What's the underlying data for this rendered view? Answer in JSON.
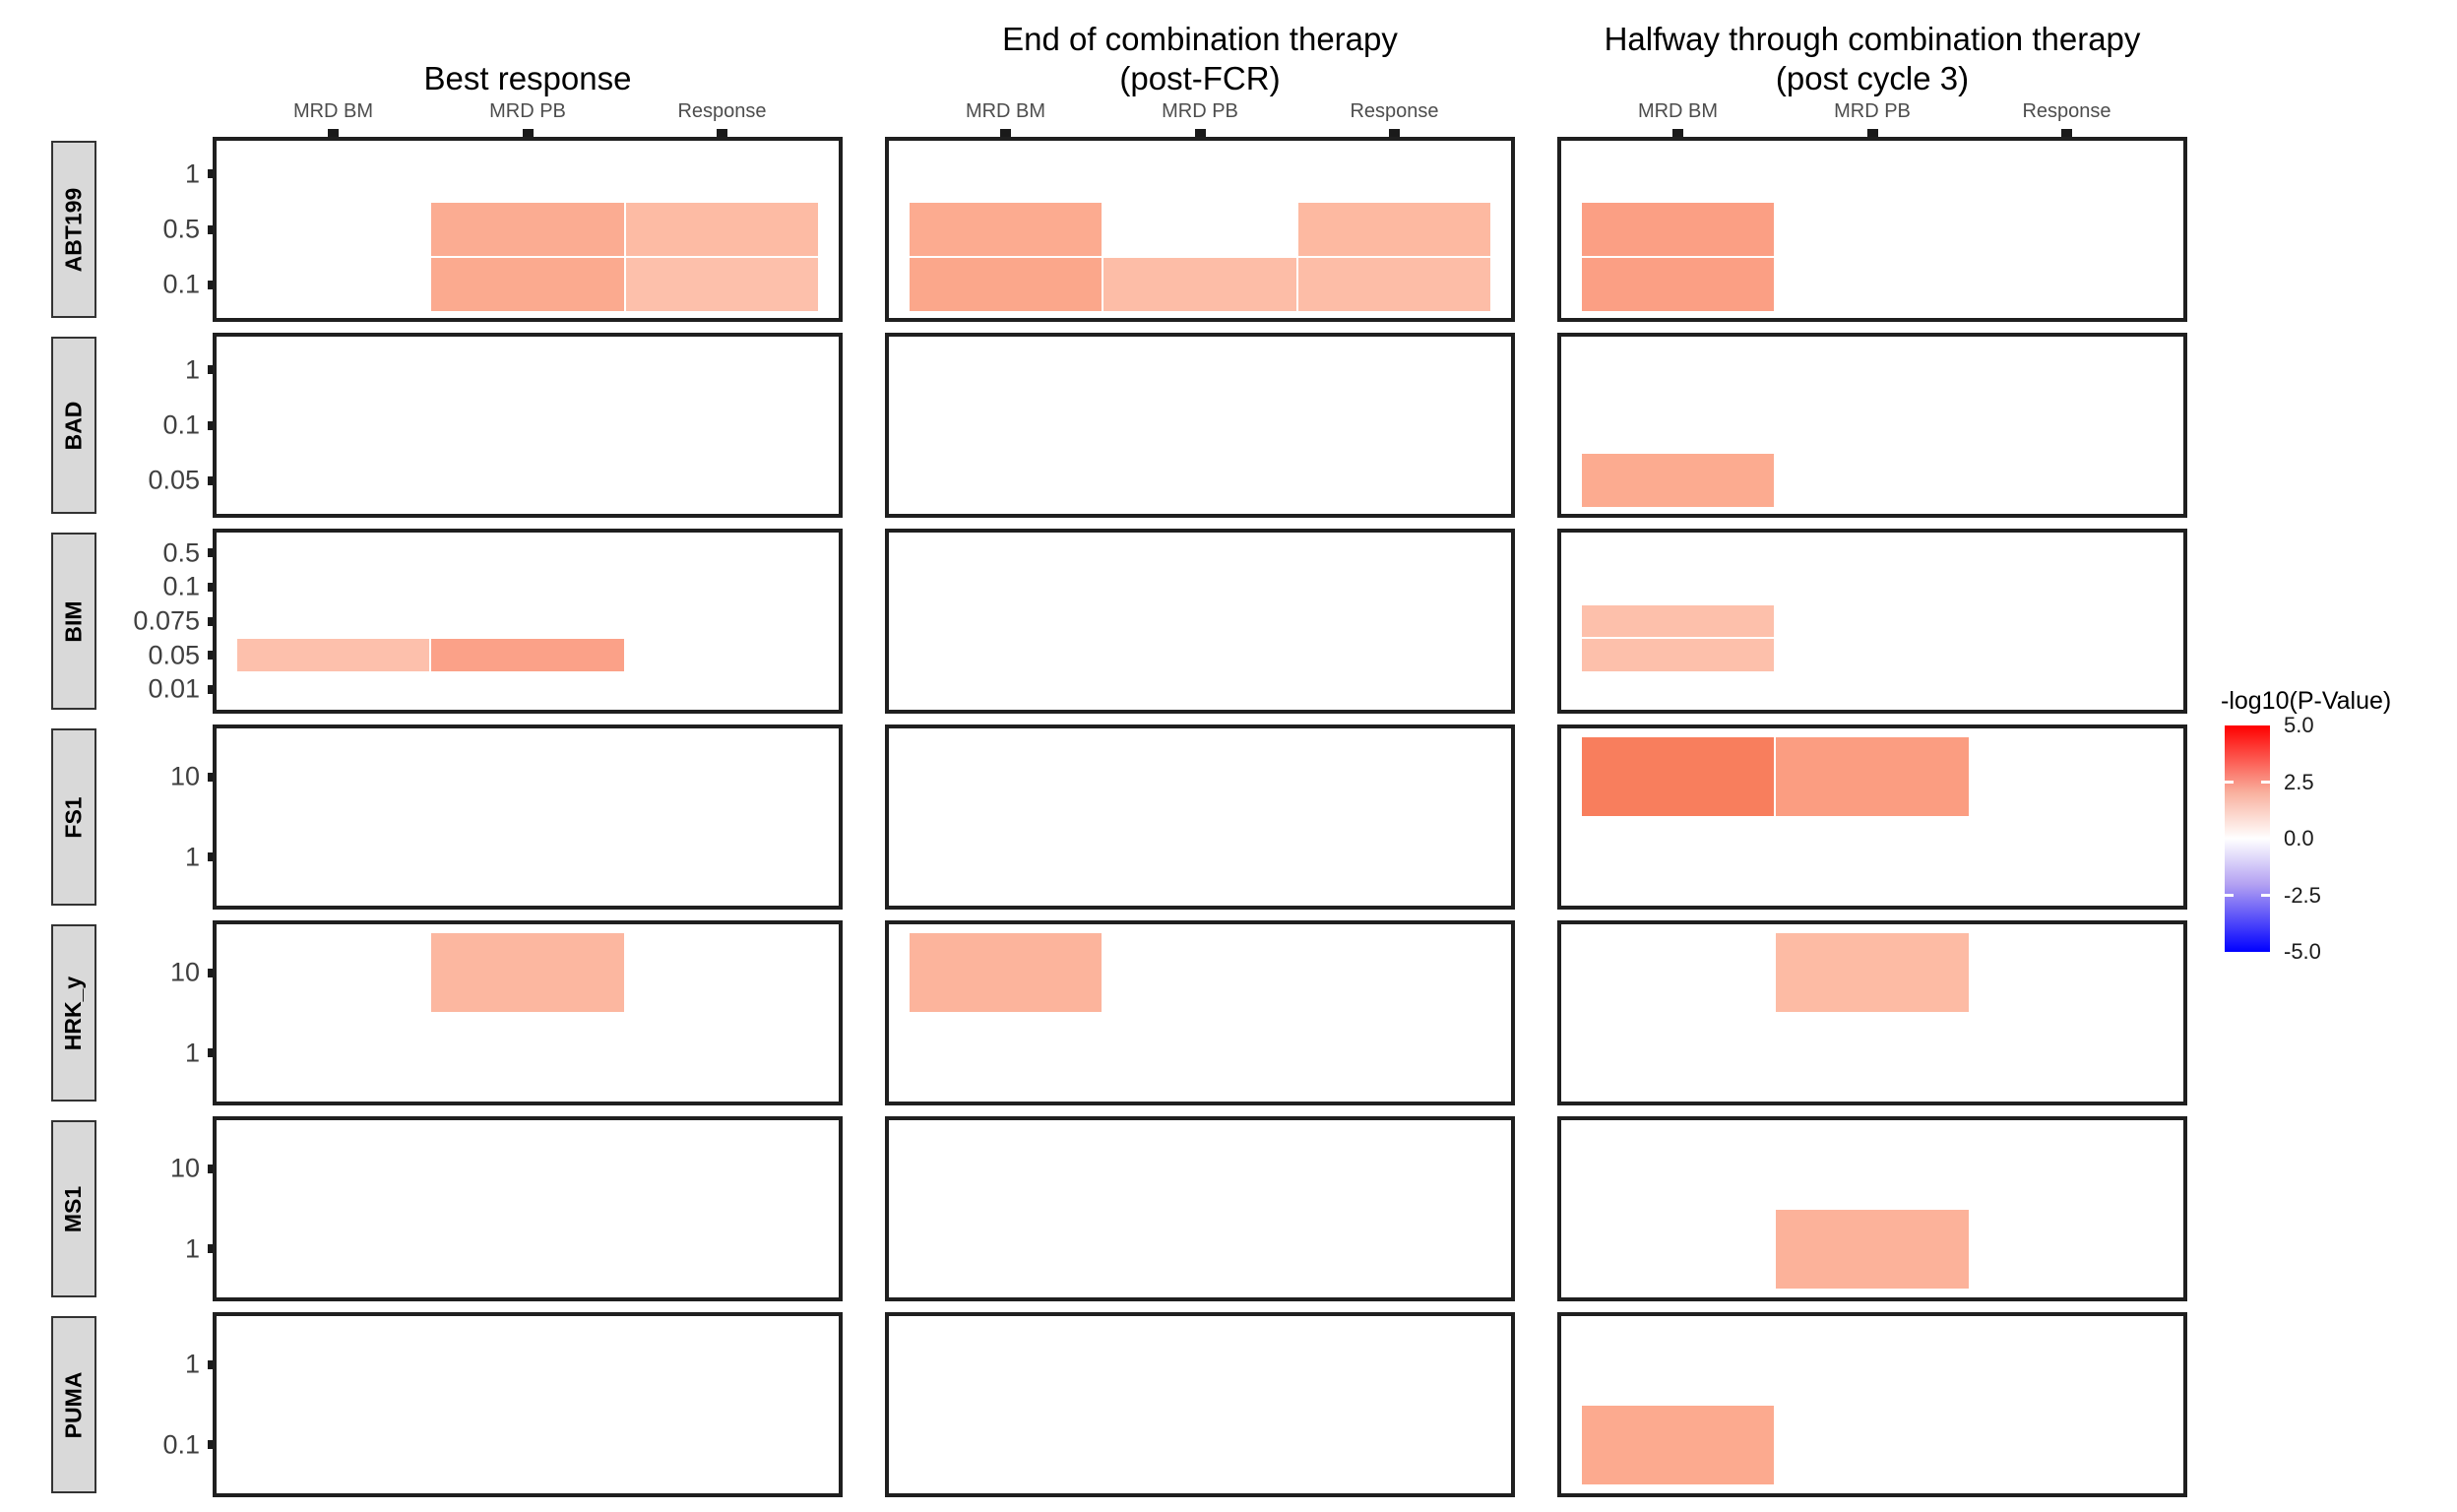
{
  "page": {
    "background": "#ffffff"
  },
  "legend": {
    "title": "-log10(P-Value)",
    "ticks": [
      "5.0",
      "2.5",
      "0.0",
      "-2.5",
      "-5.0"
    ],
    "gradient_stops": [
      "#ff0000",
      "#ffffff",
      "#0000ff"
    ],
    "domain": [
      5.0,
      -5.0
    ]
  },
  "chart_data": {
    "type": "heatmap",
    "fill_metric": "-log10(P-Value)",
    "fill_scale": {
      "low": "#0000ff",
      "mid": "#ffffff",
      "high": "#ff0000",
      "midpoint": 0,
      "limits": [
        -5,
        5
      ]
    },
    "x_categories": [
      "MRD BM",
      "MRD PB",
      "Response"
    ],
    "facet_columns": [
      {
        "id": "best_response",
        "title_lines": [
          "Best response"
        ]
      },
      {
        "id": "post_fcr",
        "title_lines": [
          "End of combination therapy",
          "(post-FCR)"
        ]
      },
      {
        "id": "post_cycle3",
        "title_lines": [
          "Halfway through combination therapy",
          "(post cycle 3)"
        ]
      }
    ],
    "facet_rows": [
      {
        "label": "ABT199",
        "y_levels": [
          "1",
          "0.5",
          "0.1"
        ]
      },
      {
        "label": "BAD",
        "y_levels": [
          "1",
          "0.1",
          "0.05"
        ]
      },
      {
        "label": "BIM",
        "y_levels": [
          "0.5",
          "0.1",
          "0.075",
          "0.05",
          "0.01"
        ]
      },
      {
        "label": "FS1",
        "y_levels": [
          "10",
          "1"
        ]
      },
      {
        "label": "HRK_y",
        "y_levels": [
          "10",
          "1"
        ]
      },
      {
        "label": "MS1",
        "y_levels": [
          "10",
          "1"
        ]
      },
      {
        "label": "PUMA",
        "y_levels": [
          "1",
          "0.1"
        ]
      }
    ],
    "tiles": [
      {
        "facet_col": "best_response",
        "facet_row": "ABT199",
        "x": "MRD PB",
        "y": "0.5",
        "color": "#fbac92",
        "value_approx": 1.9
      },
      {
        "facet_col": "best_response",
        "facet_row": "ABT199",
        "x": "MRD PB",
        "y": "0.1",
        "color": "#fbaa8f",
        "value_approx": 2.0
      },
      {
        "facet_col": "best_response",
        "facet_row": "ABT199",
        "x": "Response",
        "y": "0.5",
        "color": "#fdbba4",
        "value_approx": 1.5
      },
      {
        "facet_col": "best_response",
        "facet_row": "ABT199",
        "x": "Response",
        "y": "0.1",
        "color": "#fdc0ab",
        "value_approx": 1.4
      },
      {
        "facet_col": "best_response",
        "facet_row": "BIM",
        "x": "MRD BM",
        "y": "0.05",
        "color": "#fdc0ac",
        "value_approx": 1.4
      },
      {
        "facet_col": "best_response",
        "facet_row": "BIM",
        "x": "MRD PB",
        "y": "0.05",
        "color": "#fba188",
        "value_approx": 2.2
      },
      {
        "facet_col": "best_response",
        "facet_row": "HRK_y",
        "x": "MRD PB",
        "y": "10",
        "color": "#fcb7a0",
        "value_approx": 1.6
      },
      {
        "facet_col": "post_fcr",
        "facet_row": "ABT199",
        "x": "MRD BM",
        "y": "0.5",
        "color": "#fcab90",
        "value_approx": 1.9
      },
      {
        "facet_col": "post_fcr",
        "facet_row": "ABT199",
        "x": "MRD BM",
        "y": "0.1",
        "color": "#fba78b",
        "value_approx": 2.0
      },
      {
        "facet_col": "post_fcr",
        "facet_row": "ABT199",
        "x": "MRD PB",
        "y": "0.1",
        "color": "#fdbda7",
        "value_approx": 1.5
      },
      {
        "facet_col": "post_fcr",
        "facet_row": "ABT199",
        "x": "Response",
        "y": "0.5",
        "color": "#fdb9a1",
        "value_approx": 1.6
      },
      {
        "facet_col": "post_fcr",
        "facet_row": "ABT199",
        "x": "Response",
        "y": "0.1",
        "color": "#fdbda7",
        "value_approx": 1.5
      },
      {
        "facet_col": "post_fcr",
        "facet_row": "HRK_y",
        "x": "MRD BM",
        "y": "10",
        "color": "#fcb49c",
        "value_approx": 1.7
      },
      {
        "facet_col": "post_cycle3",
        "facet_row": "ABT199",
        "x": "MRD BM",
        "y": "0.5",
        "color": "#fb9f84",
        "value_approx": 2.2
      },
      {
        "facet_col": "post_cycle3",
        "facet_row": "ABT199",
        "x": "MRD BM",
        "y": "0.1",
        "color": "#fb9f84",
        "value_approx": 2.2
      },
      {
        "facet_col": "post_cycle3",
        "facet_row": "BAD",
        "x": "MRD BM",
        "y": "0.05",
        "color": "#fcab90",
        "value_approx": 1.9
      },
      {
        "facet_col": "post_cycle3",
        "facet_row": "BIM",
        "x": "MRD BM",
        "y": "0.075",
        "color": "#fdc0ab",
        "value_approx": 1.4
      },
      {
        "facet_col": "post_cycle3",
        "facet_row": "BIM",
        "x": "MRD BM",
        "y": "0.05",
        "color": "#fdc0ab",
        "value_approx": 1.4
      },
      {
        "facet_col": "post_cycle3",
        "facet_row": "FS1",
        "x": "MRD BM",
        "y": "10",
        "color": "#f87e5d",
        "value_approx": 2.8
      },
      {
        "facet_col": "post_cycle3",
        "facet_row": "FS1",
        "x": "MRD PB",
        "y": "10",
        "color": "#fb9d81",
        "value_approx": 2.2
      },
      {
        "facet_col": "post_cycle3",
        "facet_row": "HRK_y",
        "x": "MRD PB",
        "y": "10",
        "color": "#fdbba4",
        "value_approx": 1.5
      },
      {
        "facet_col": "post_cycle3",
        "facet_row": "MS1",
        "x": "MRD PB",
        "y": "1",
        "color": "#fcb29a",
        "value_approx": 1.7
      },
      {
        "facet_col": "post_cycle3",
        "facet_row": "PUMA",
        "x": "MRD BM",
        "y": "0.1",
        "color": "#fcaa8f",
        "value_approx": 1.9
      }
    ]
  }
}
